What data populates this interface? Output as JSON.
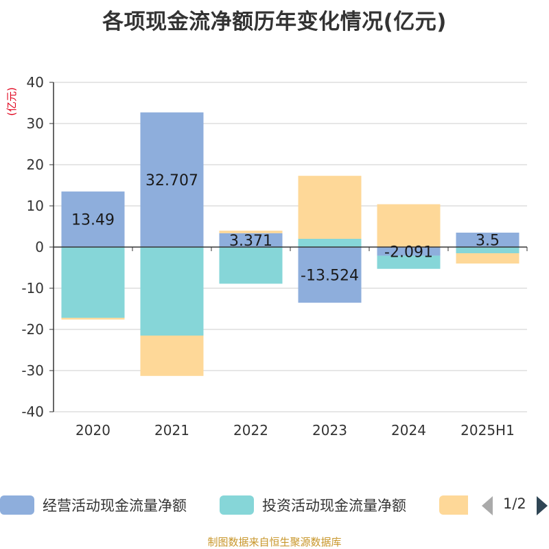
{
  "title": "各项现金流净额历年变化情况(亿元)",
  "unit": "(亿元)",
  "source": "制图数据来自恒生聚源数据库",
  "legend": {
    "items": [
      {
        "label": "经营活动现金流量净额",
        "color": "#8eaedc"
      },
      {
        "label": "投资活动现金流量净额",
        "color": "#86d6d8"
      },
      {
        "label": "",
        "color": "#fed898"
      }
    ],
    "page": "1/2"
  },
  "chart_data": {
    "type": "bar",
    "stacked": true,
    "categories": [
      "2020",
      "2021",
      "2022",
      "2023",
      "2024",
      "2025H1"
    ],
    "ylim": [
      -40,
      40
    ],
    "yticks": [
      40,
      30,
      20,
      10,
      0,
      -10,
      -20,
      -30,
      -40
    ],
    "grid": true,
    "series": [
      {
        "name": "经营活动现金流量净额",
        "color": "#8eaedc",
        "values": [
          13.49,
          32.707,
          3.371,
          -13.524,
          -2.091,
          3.5
        ],
        "labels": [
          "13.49",
          "32.707",
          "3.371",
          "-13.524",
          "-2.091",
          "3.5"
        ]
      },
      {
        "name": "投资活动现金流量净额",
        "color": "#86d6d8",
        "values": [
          -17.2,
          -21.5,
          -8.9,
          2.0,
          -3.2,
          -1.5
        ]
      },
      {
        "name": "",
        "color": "#fed898",
        "values": [
          -0.4,
          -9.8,
          0.6,
          15.3,
          10.4,
          -2.5
        ]
      }
    ]
  }
}
